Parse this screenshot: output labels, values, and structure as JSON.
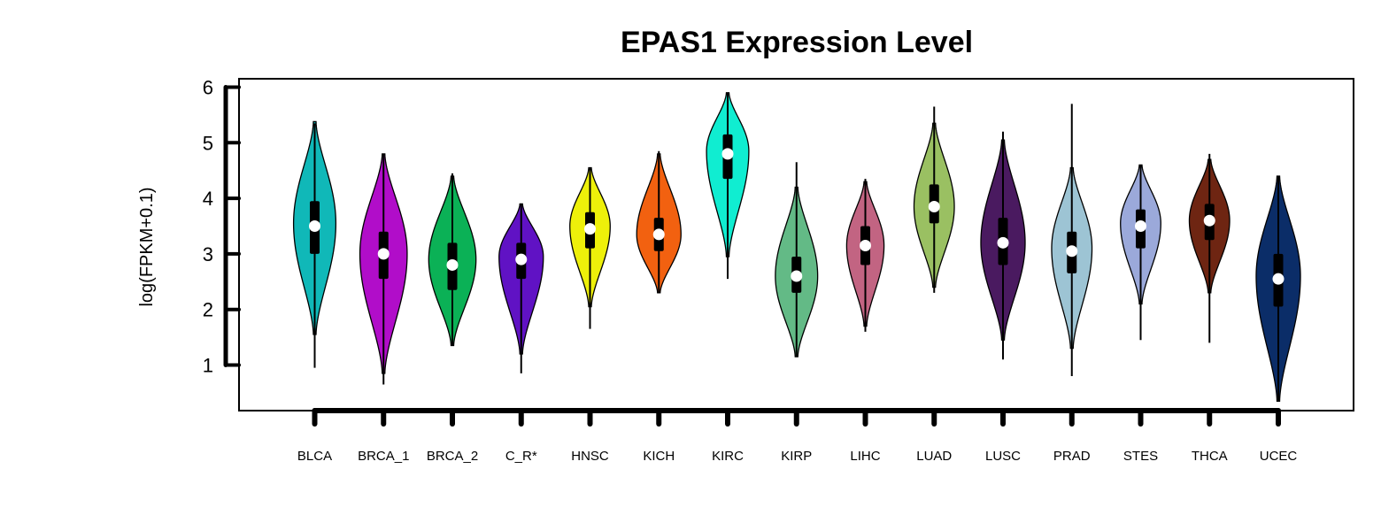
{
  "chart_data": {
    "type": "violin",
    "title": "EPAS1 Expression Level",
    "xlabel": "",
    "ylabel": "log(FPKM+0.1)",
    "ylim": [
      0.2,
      6.15
    ],
    "yticks": [
      1,
      2,
      3,
      4,
      5,
      6
    ],
    "categories": [
      "BLCA",
      "BRCA_1",
      "BRCA_2",
      "C_R*",
      "HNSC",
      "KICH",
      "KIRC",
      "KIRP",
      "LIHC",
      "LUAD",
      "LUSC",
      "PRAD",
      "STES",
      "THCA",
      "UCEC"
    ],
    "series": [
      {
        "category": "BLCA",
        "color": "#10B8B8",
        "min": 0.95,
        "q1": 3.0,
        "median": 3.5,
        "q3": 3.95,
        "max": 5.35,
        "violin_min": 1.55,
        "violin_max": 5.38,
        "mode": 3.55,
        "max_halfwidth": 0.4
      },
      {
        "category": "BRCA_1",
        "color": "#B10DC9",
        "min": 0.65,
        "q1": 2.55,
        "median": 3.0,
        "q3": 3.4,
        "max": 4.8,
        "violin_min": 0.85,
        "violin_max": 4.8,
        "mode": 3.0,
        "max_halfwidth": 0.45
      },
      {
        "category": "BRCA_2",
        "color": "#0BB156",
        "min": 1.35,
        "q1": 2.35,
        "median": 2.8,
        "q3": 3.2,
        "max": 4.45,
        "violin_min": 1.35,
        "violin_max": 4.4,
        "mode": 2.9,
        "max_halfwidth": 0.45
      },
      {
        "category": "C_R*",
        "color": "#6012C4",
        "min": 0.85,
        "q1": 2.55,
        "median": 2.9,
        "q3": 3.2,
        "max": 3.9,
        "violin_min": 1.2,
        "violin_max": 3.9,
        "mode": 2.95,
        "max_halfwidth": 0.42
      },
      {
        "category": "HNSC",
        "color": "#EEF00A",
        "min": 1.65,
        "q1": 3.1,
        "median": 3.45,
        "q3": 3.75,
        "max": 4.55,
        "violin_min": 2.05,
        "violin_max": 4.55,
        "mode": 3.5,
        "max_halfwidth": 0.38
      },
      {
        "category": "KICH",
        "color": "#F26110",
        "min": 2.3,
        "q1": 3.05,
        "median": 3.35,
        "q3": 3.65,
        "max": 4.85,
        "violin_min": 2.3,
        "violin_max": 4.8,
        "mode": 3.35,
        "max_halfwidth": 0.42
      },
      {
        "category": "KIRC",
        "color": "#10EDD1",
        "min": 2.55,
        "q1": 4.35,
        "median": 4.8,
        "q3": 5.15,
        "max": 5.9,
        "violin_min": 2.95,
        "violin_max": 5.9,
        "mode": 4.85,
        "max_halfwidth": 0.4
      },
      {
        "category": "KIRP",
        "color": "#63BA86",
        "min": 1.15,
        "q1": 2.3,
        "median": 2.6,
        "q3": 2.95,
        "max": 4.65,
        "violin_min": 1.15,
        "violin_max": 4.2,
        "mode": 2.6,
        "max_halfwidth": 0.4
      },
      {
        "category": "LIHC",
        "color": "#C26482",
        "min": 1.6,
        "q1": 2.8,
        "median": 3.15,
        "q3": 3.5,
        "max": 4.35,
        "violin_min": 1.7,
        "violin_max": 4.3,
        "mode": 3.15,
        "max_halfwidth": 0.35
      },
      {
        "category": "LUAD",
        "color": "#9AC062",
        "min": 2.3,
        "q1": 3.55,
        "median": 3.85,
        "q3": 4.25,
        "max": 5.65,
        "violin_min": 2.4,
        "violin_max": 5.35,
        "mode": 3.85,
        "max_halfwidth": 0.38
      },
      {
        "category": "LUSC",
        "color": "#4A1A60",
        "min": 1.1,
        "q1": 2.8,
        "median": 3.2,
        "q3": 3.65,
        "max": 5.2,
        "violin_min": 1.45,
        "violin_max": 5.05,
        "mode": 3.2,
        "max_halfwidth": 0.42
      },
      {
        "category": "PRAD",
        "color": "#9DC4D4",
        "min": 0.8,
        "q1": 2.65,
        "median": 3.05,
        "q3": 3.4,
        "max": 5.7,
        "violin_min": 1.3,
        "violin_max": 4.55,
        "mode": 3.1,
        "max_halfwidth": 0.38
      },
      {
        "category": "STES",
        "color": "#9BA9DA",
        "min": 1.45,
        "q1": 3.1,
        "median": 3.5,
        "q3": 3.8,
        "max": 4.6,
        "violin_min": 2.1,
        "violin_max": 4.6,
        "mode": 3.55,
        "max_halfwidth": 0.38
      },
      {
        "category": "THCA",
        "color": "#6E2512",
        "min": 1.4,
        "q1": 3.25,
        "median": 3.6,
        "q3": 3.9,
        "max": 4.8,
        "violin_min": 2.3,
        "violin_max": 4.7,
        "mode": 3.6,
        "max_halfwidth": 0.38
      },
      {
        "category": "UCEC",
        "color": "#0B2D68",
        "min": 0.35,
        "q1": 2.05,
        "median": 2.55,
        "q3": 3.0,
        "max": 4.4,
        "violin_min": 0.35,
        "violin_max": 4.4,
        "mode": 2.6,
        "max_halfwidth": 0.42
      }
    ]
  }
}
